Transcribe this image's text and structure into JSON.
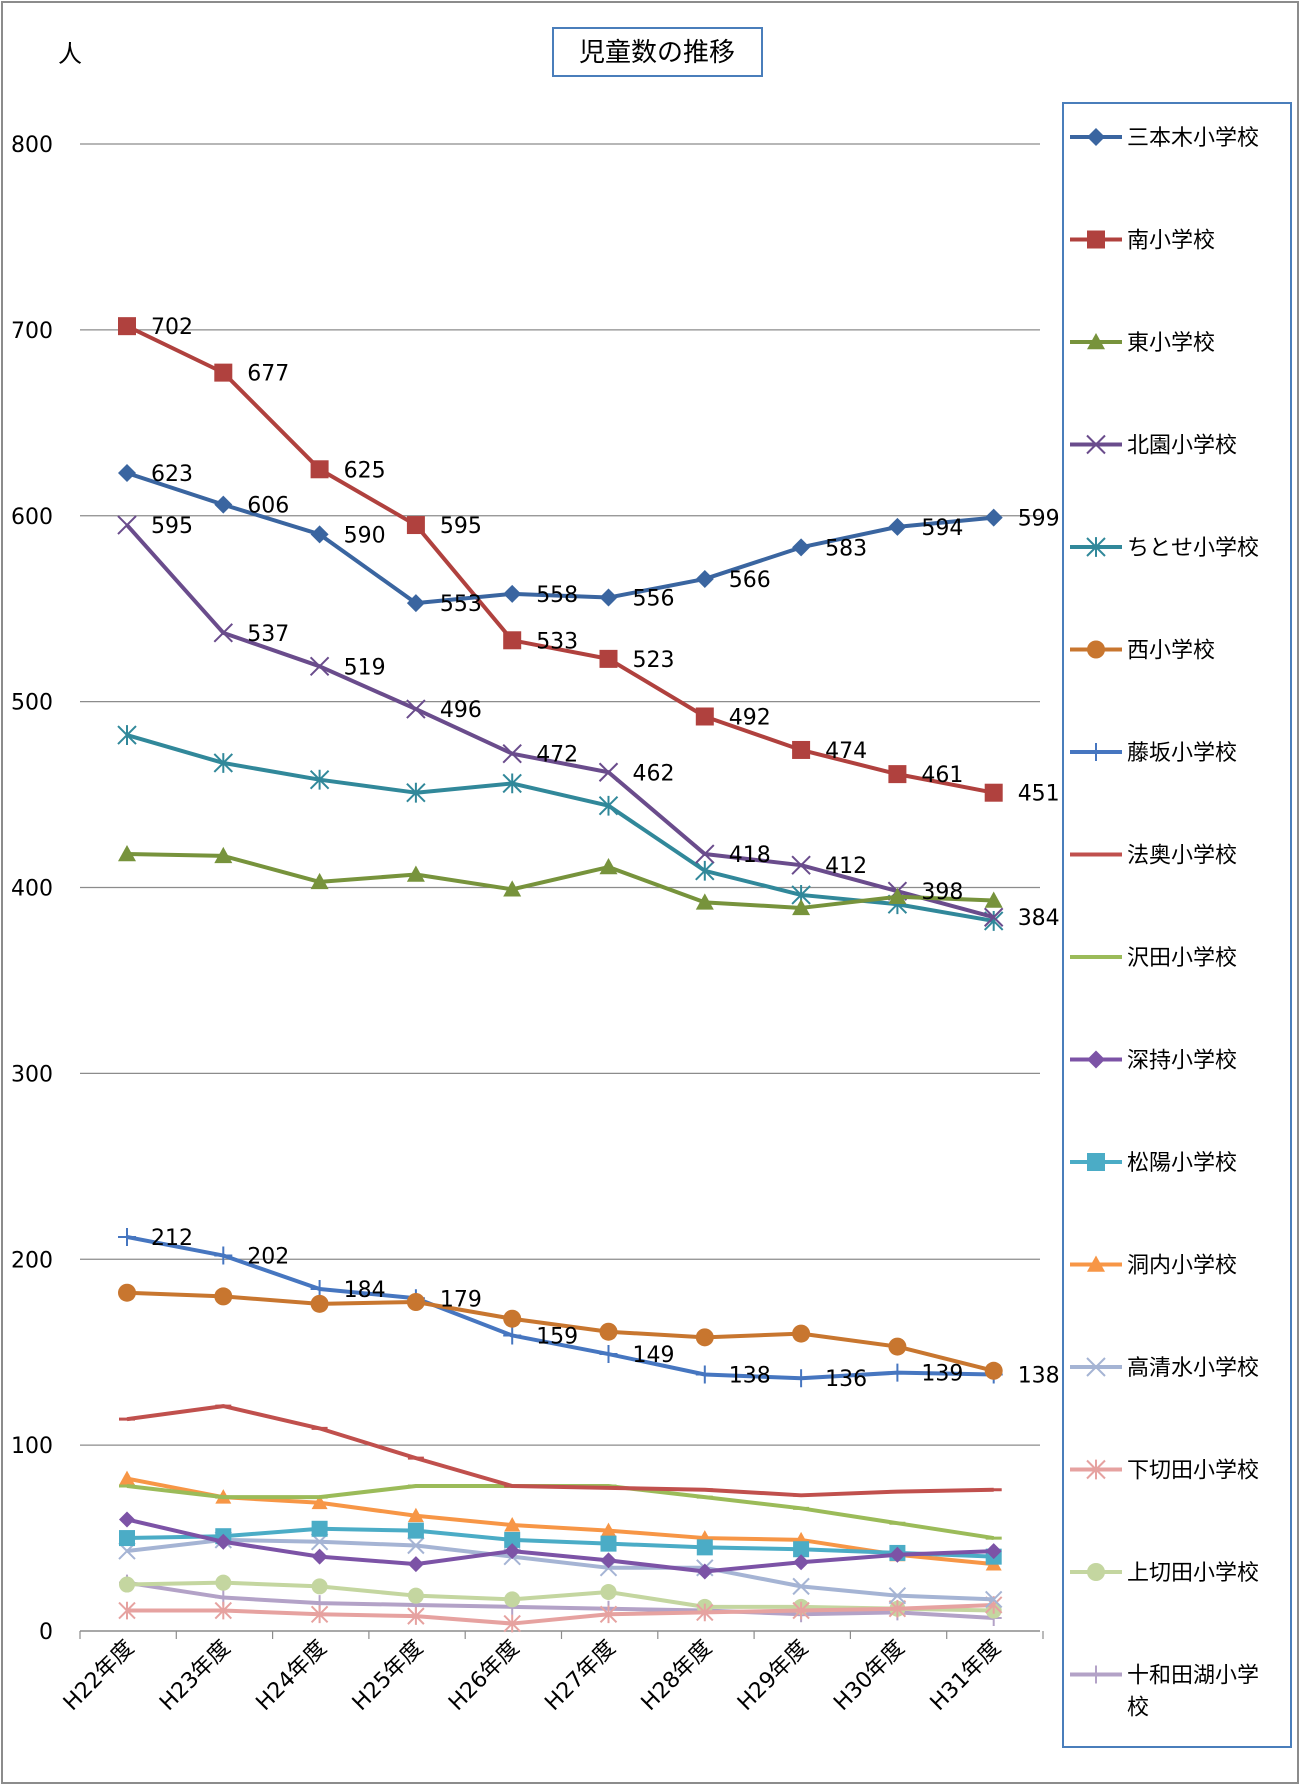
{
  "chart_data": {
    "type": "line",
    "title": "児童数の推移",
    "ylabel": "人",
    "xlabel": "",
    "ylim": [
      0,
      800
    ],
    "yticks": [
      0,
      100,
      200,
      300,
      400,
      500,
      600,
      700,
      800
    ],
    "grid": true,
    "legend": "right",
    "categories": [
      "H22年度",
      "H23年度",
      "H24年度",
      "H25年度",
      "H26年度",
      "H27年度",
      "H28年度",
      "H29年度",
      "H30年度",
      "H31年度"
    ],
    "series": [
      {
        "name": "三本木小学校",
        "color": "#3a65a0",
        "marker": "diamond",
        "values": [
          623,
          606,
          590,
          553,
          558,
          556,
          566,
          583,
          594,
          599
        ],
        "labels": true
      },
      {
        "name": "南小学校",
        "color": "#b0413e",
        "marker": "square",
        "values": [
          702,
          677,
          625,
          595,
          533,
          523,
          492,
          474,
          461,
          451
        ],
        "labels": true
      },
      {
        "name": "東小学校",
        "color": "#77933c",
        "marker": "triangle",
        "values": [
          418,
          417,
          403,
          407,
          399,
          411,
          392,
          389,
          395,
          393
        ],
        "labels": false
      },
      {
        "name": "北園小学校",
        "color": "#6a4c8c",
        "marker": "x",
        "values": [
          595,
          537,
          519,
          496,
          472,
          462,
          418,
          412,
          398,
          384
        ],
        "labels": true
      },
      {
        "name": "ちとせ小学校",
        "color": "#31889a",
        "marker": "star",
        "values": [
          482,
          467,
          458,
          451,
          456,
          444,
          409,
          396,
          391,
          382
        ],
        "labels": false
      },
      {
        "name": "西小学校",
        "color": "#c8762f",
        "marker": "circle",
        "values": [
          182,
          180,
          176,
          177,
          168,
          161,
          158,
          160,
          153,
          140
        ],
        "labels": false
      },
      {
        "name": "藤坂小学校",
        "color": "#4676c0",
        "marker": "plus",
        "values": [
          212,
          202,
          184,
          179,
          159,
          149,
          138,
          136,
          139,
          138
        ],
        "labels": true
      },
      {
        "name": "法奥小学校",
        "color": "#c0504d",
        "marker": "dash",
        "values": [
          114,
          121,
          109,
          93,
          78,
          77,
          76,
          73,
          75,
          76
        ],
        "labels": false
      },
      {
        "name": "沢田小学校",
        "color": "#9bbb59",
        "marker": "dash",
        "values": [
          78,
          72,
          72,
          78,
          78,
          78,
          72,
          66,
          58,
          50
        ],
        "labels": false
      },
      {
        "name": "深持小学校",
        "color": "#7c53a6",
        "marker": "diamond",
        "values": [
          60,
          48,
          40,
          36,
          43,
          38,
          32,
          37,
          41,
          43
        ],
        "labels": false
      },
      {
        "name": "松陽小学校",
        "color": "#4bacc6",
        "marker": "square",
        "values": [
          50,
          51,
          55,
          54,
          49,
          47,
          45,
          44,
          42,
          40
        ],
        "labels": false
      },
      {
        "name": "洞内小学校",
        "color": "#f79646",
        "marker": "triangle",
        "values": [
          82,
          72,
          69,
          62,
          57,
          54,
          50,
          49,
          41,
          36
        ],
        "labels": false
      },
      {
        "name": "高清水小学校",
        "color": "#a5b4d4",
        "marker": "x",
        "values": [
          43,
          49,
          48,
          46,
          40,
          34,
          34,
          24,
          19,
          17
        ],
        "labels": false
      },
      {
        "name": "下切田小学校",
        "color": "#e6a2a0",
        "marker": "star",
        "values": [
          11,
          11,
          9,
          8,
          4,
          9,
          10,
          11,
          12,
          14
        ],
        "labels": false
      },
      {
        "name": "上切田小学校",
        "color": "#c4d6a0",
        "marker": "circle",
        "values": [
          25,
          26,
          24,
          19,
          17,
          21,
          13,
          13,
          12,
          11
        ],
        "labels": false
      },
      {
        "name": "十和田湖小学校",
        "color": "#b3a2c7",
        "marker": "plus",
        "values": [
          26,
          18,
          15,
          14,
          13,
          12,
          11,
          9,
          10,
          7
        ],
        "labels": false
      }
    ]
  }
}
